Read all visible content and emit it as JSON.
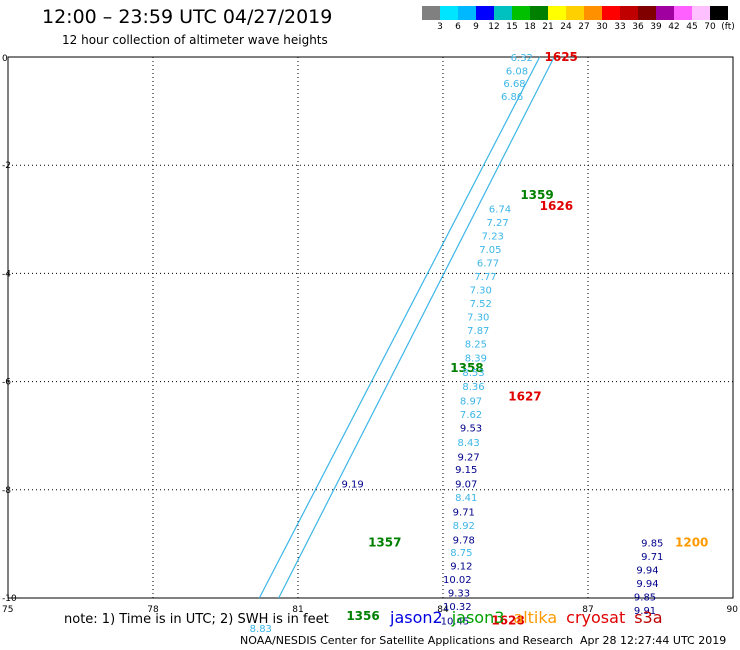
{
  "title": "12:00 – 23:59 UTC 04/27/2019",
  "subtitle": "12 hour collection of altimeter wave heights",
  "colorbar": {
    "colors": [
      "#808080",
      "#00e5ff",
      "#00b8ff",
      "#0000ff",
      "#00c0c0",
      "#00c000",
      "#008000",
      "#ffff00",
      "#ffd000",
      "#ff9000",
      "#ff0000",
      "#c00000",
      "#800000",
      "#a000a0",
      "#ff60ff",
      "#ffc0ff",
      "#000000"
    ],
    "labels": [
      "3",
      "6",
      "9",
      "12",
      "15",
      "18",
      "21",
      "24",
      "27",
      "30",
      "33",
      "36",
      "39",
      "42",
      "45",
      "70",
      "(ft)"
    ]
  },
  "axes": {
    "x_ticks": [
      "75",
      "78",
      "81",
      "84",
      "87",
      "90"
    ],
    "x_values": [
      75,
      78,
      81,
      84,
      87,
      90
    ],
    "x_range": [
      75,
      90
    ],
    "y_ticks": [
      "0",
      "-2",
      "-4",
      "-6",
      "-8",
      "-10"
    ],
    "y_values": [
      0,
      -2,
      -4,
      -6,
      -8,
      -10
    ],
    "y_range": [
      -10,
      0
    ],
    "grid": true
  },
  "tracks": [
    {
      "satellite": "s3a",
      "color": "#3cb6e8",
      "lon_start": 80.2,
      "lat_start": -10.0,
      "lon_end": 86.0,
      "lat_end": 0.0
    },
    {
      "satellite": "s3a",
      "color": "#3cb6e8",
      "lon_start": 80.6,
      "lat_start": -10.0,
      "lon_end": 86.3,
      "lat_end": 0.0
    }
  ],
  "labels": [
    {
      "text": "6.32",
      "lon": 85.4,
      "lat": 0.0,
      "color": "#3cb6e8"
    },
    {
      "text": "6.08",
      "lon": 85.3,
      "lat": -0.25,
      "color": "#3cb6e8"
    },
    {
      "text": "6.68",
      "lon": 85.25,
      "lat": -0.48,
      "color": "#3cb6e8"
    },
    {
      "text": "6.86",
      "lon": 85.2,
      "lat": -0.72,
      "color": "#3cb6e8"
    },
    {
      "text": "1625",
      "lon": 86.1,
      "lat": 0.0,
      "color": "#e00000"
    },
    {
      "text": "1359",
      "lon": 85.6,
      "lat": -2.55,
      "color": "#008000"
    },
    {
      "text": "1626",
      "lon": 86.0,
      "lat": -2.75,
      "color": "#e00000"
    },
    {
      "text": "6.74",
      "lon": 84.95,
      "lat": -2.8,
      "color": "#3cb6e8"
    },
    {
      "text": "7.27",
      "lon": 84.9,
      "lat": -3.05,
      "color": "#3cb6e8"
    },
    {
      "text": "7.23",
      "lon": 84.8,
      "lat": -3.3,
      "color": "#3cb6e8"
    },
    {
      "text": "7.05",
      "lon": 84.75,
      "lat": -3.55,
      "color": "#3cb6e8"
    },
    {
      "text": "6.77",
      "lon": 84.7,
      "lat": -3.8,
      "color": "#3cb6e8"
    },
    {
      "text": "7.77",
      "lon": 84.65,
      "lat": -4.05,
      "color": "#3cb6e8"
    },
    {
      "text": "7.30",
      "lon": 84.55,
      "lat": -4.3,
      "color": "#3cb6e8"
    },
    {
      "text": "7.52",
      "lon": 84.55,
      "lat": -4.55,
      "color": "#3cb6e8"
    },
    {
      "text": "7.30",
      "lon": 84.5,
      "lat": -4.8,
      "color": "#3cb6e8"
    },
    {
      "text": "7.87",
      "lon": 84.5,
      "lat": -5.05,
      "color": "#3cb6e8"
    },
    {
      "text": "8.25",
      "lon": 84.45,
      "lat": -5.3,
      "color": "#3cb6e8"
    },
    {
      "text": "8.39",
      "lon": 84.45,
      "lat": -5.55,
      "color": "#3cb6e8"
    },
    {
      "text": "1358",
      "lon": 84.15,
      "lat": -5.75,
      "color": "#008000"
    },
    {
      "text": "8.53",
      "lon": 84.4,
      "lat": -5.82,
      "color": "#3cb6e8"
    },
    {
      "text": "8.36",
      "lon": 84.4,
      "lat": -6.08,
      "color": "#3cb6e8"
    },
    {
      "text": "8.97",
      "lon": 84.35,
      "lat": -6.35,
      "color": "#3cb6e8"
    },
    {
      "text": "1627",
      "lon": 85.35,
      "lat": -6.28,
      "color": "#e00000"
    },
    {
      "text": "7.62",
      "lon": 84.35,
      "lat": -6.6,
      "color": "#3cb6e8"
    },
    {
      "text": "9.53",
      "lon": 84.35,
      "lat": -6.85,
      "color": "#00008b"
    },
    {
      "text": "8.43",
      "lon": 84.3,
      "lat": -7.12,
      "color": "#3cb6e8"
    },
    {
      "text": "9.27",
      "lon": 84.3,
      "lat": -7.38,
      "color": "#00008b"
    },
    {
      "text": "9.15",
      "lon": 84.25,
      "lat": -7.62,
      "color": "#00008b"
    },
    {
      "text": "9.07",
      "lon": 84.25,
      "lat": -7.88,
      "color": "#00008b"
    },
    {
      "text": "9.19",
      "lon": 81.9,
      "lat": -7.88,
      "color": "#00008b"
    },
    {
      "text": "8.41",
      "lon": 84.25,
      "lat": -8.13,
      "color": "#3cb6e8"
    },
    {
      "text": "9.71",
      "lon": 84.2,
      "lat": -8.4,
      "color": "#00008b"
    },
    {
      "text": "8.92",
      "lon": 84.2,
      "lat": -8.65,
      "color": "#3cb6e8"
    },
    {
      "text": "9.78",
      "lon": 84.2,
      "lat": -8.92,
      "color": "#00008b"
    },
    {
      "text": "1357",
      "lon": 82.45,
      "lat": -8.97,
      "color": "#008000"
    },
    {
      "text": "8.75",
      "lon": 84.15,
      "lat": -9.15,
      "color": "#3cb6e8"
    },
    {
      "text": "9.12",
      "lon": 84.15,
      "lat": -9.4,
      "color": "#00008b"
    },
    {
      "text": "10.02",
      "lon": 84.0,
      "lat": -9.65,
      "color": "#00008b"
    },
    {
      "text": "9.33",
      "lon": 84.1,
      "lat": -9.9,
      "color": "#00008b"
    },
    {
      "text": "10.32",
      "lon": 84.0,
      "lat": -10.15,
      "color": "#00008b"
    },
    {
      "text": "10.45",
      "lon": 83.95,
      "lat": -10.42,
      "color": "#00008b"
    },
    {
      "text": "1628",
      "lon": 85.0,
      "lat": -10.42,
      "color": "#e00000"
    },
    {
      "text": "1356",
      "lon": 82.0,
      "lat": -10.33,
      "color": "#008000"
    },
    {
      "text": "8.83",
      "lon": 80.0,
      "lat": -10.55,
      "color": "#3cb6e8"
    },
    {
      "text": "9.85",
      "lon": 88.1,
      "lat": -8.97,
      "color": "#00008b"
    },
    {
      "text": "1200",
      "lon": 88.8,
      "lat": -8.97,
      "color": "#ff9900"
    },
    {
      "text": "9.71",
      "lon": 88.1,
      "lat": -9.22,
      "color": "#00008b"
    },
    {
      "text": "9.94",
      "lon": 88.0,
      "lat": -9.47,
      "color": "#00008b"
    },
    {
      "text": "9.94",
      "lon": 88.0,
      "lat": -9.72,
      "color": "#00008b"
    },
    {
      "text": "9.85",
      "lon": 87.95,
      "lat": -9.97,
      "color": "#00008b"
    },
    {
      "text": "9.91",
      "lon": 87.95,
      "lat": -10.22,
      "color": "#00008b"
    }
  ],
  "note": "note:  1) Time is in UTC;  2) SWH is in feet",
  "legend": [
    {
      "name": "jason2",
      "color": "#0000e0"
    },
    {
      "name": "jason3",
      "color": "#00a000"
    },
    {
      "name": "altika",
      "color": "#ff9900"
    },
    {
      "name": "cryosat",
      "color": "#e00000"
    },
    {
      "name": "s3a",
      "color": "#c00000"
    }
  ],
  "footer": "NOAA/NESDIS Center for Satellite Applications and Research",
  "footer_time": "Apr 28 12:27:44 UTC 2019"
}
